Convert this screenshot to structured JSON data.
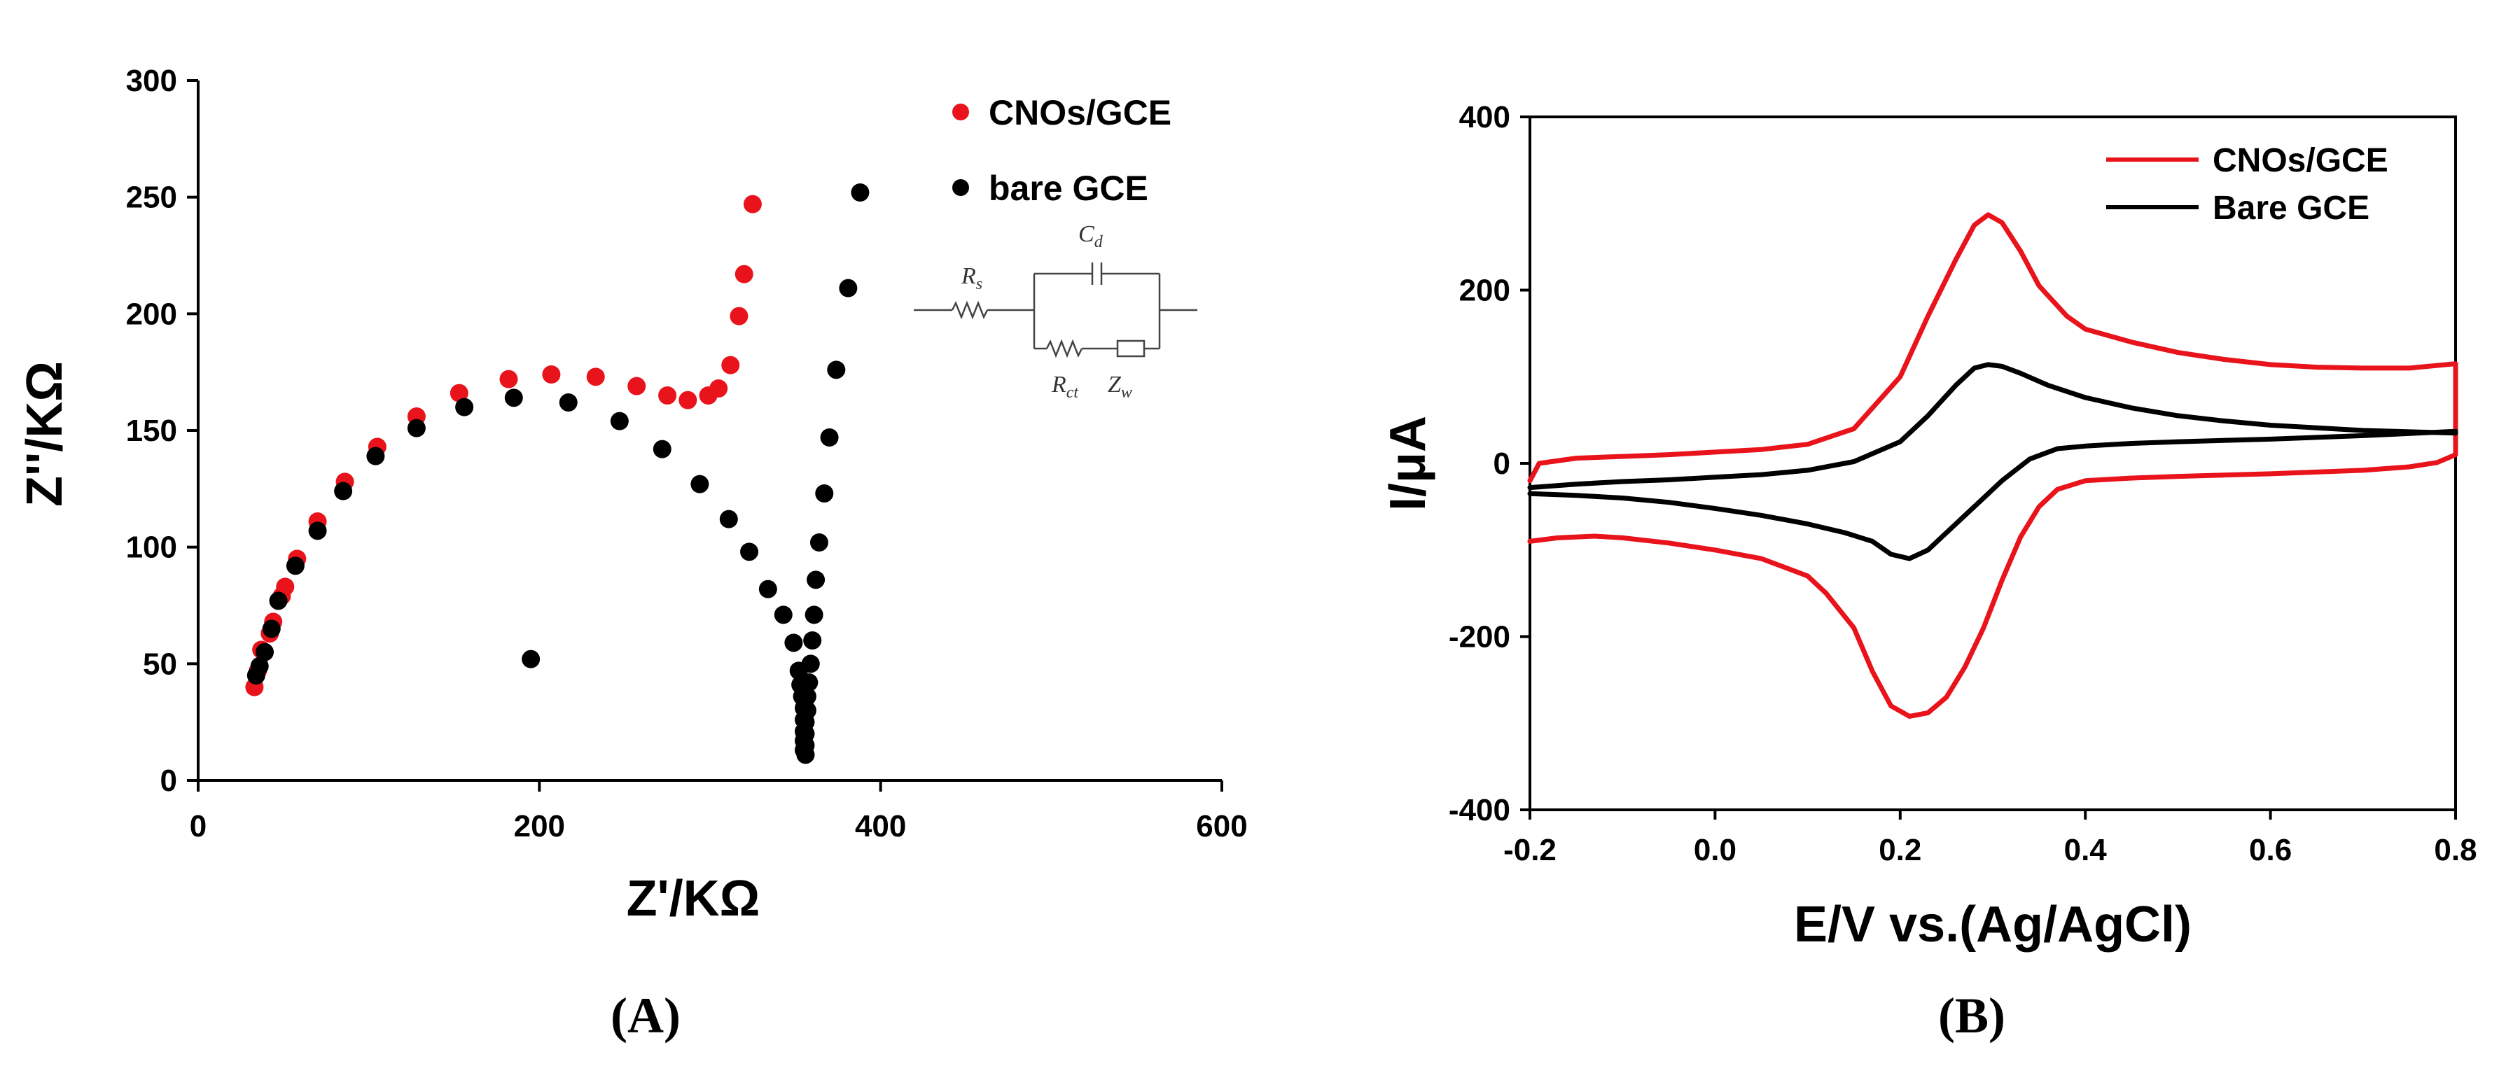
{
  "chart_data": [
    {
      "type": "scatter",
      "panel_label": "(A)",
      "xlabel": "Z'/KΩ",
      "ylabel": "Z''/KΩ",
      "xlim": [
        0,
        600
      ],
      "ylim": [
        0,
        300
      ],
      "xticks": [
        "0",
        "200",
        "400",
        "600"
      ],
      "yticks": [
        "0",
        "50",
        "100",
        "150",
        "200",
        "250",
        "300"
      ],
      "legend_position": "top-right",
      "inset_circuit": {
        "labels": [
          "R",
          "C",
          "R",
          "Z"
        ],
        "subscripts": [
          "s",
          "d",
          "ct",
          "w"
        ]
      },
      "series": [
        {
          "name": "CNOs/GCE",
          "color": "#e8131b",
          "points": [
            [
              33,
              40
            ],
            [
              35,
              47
            ],
            [
              37,
              56
            ],
            [
              42,
              63
            ],
            [
              44,
              68
            ],
            [
              49,
              79
            ],
            [
              51,
              83
            ],
            [
              58,
              95
            ],
            [
              70,
              111
            ],
            [
              86,
              128
            ],
            [
              105,
              143
            ],
            [
              128,
              156
            ],
            [
              153,
              166
            ],
            [
              182,
              172
            ],
            [
              207,
              174
            ],
            [
              233,
              173
            ],
            [
              257,
              169
            ],
            [
              275,
              165
            ],
            [
              287,
              163
            ],
            [
              299,
              165
            ],
            [
              305,
              168
            ],
            [
              312,
              178
            ],
            [
              317,
              199
            ],
            [
              320,
              217
            ],
            [
              325,
              247
            ]
          ]
        },
        {
          "name": "bare GCE",
          "color": "#000000",
          "points": [
            [
              34,
              45
            ],
            [
              36,
              49
            ],
            [
              39,
              55
            ],
            [
              43,
              65
            ],
            [
              47,
              77
            ],
            [
              57,
              92
            ],
            [
              70,
              107
            ],
            [
              85,
              124
            ],
            [
              104,
              139
            ],
            [
              128,
              151
            ],
            [
              156,
              160
            ],
            [
              185,
              164
            ],
            [
              217,
              162
            ],
            [
              247,
              154
            ],
            [
              272,
              142
            ],
            [
              294,
              127
            ],
            [
              311,
              112
            ],
            [
              323,
              98
            ],
            [
              334,
              82
            ],
            [
              343,
              71
            ],
            [
              349,
              59
            ],
            [
              352,
              47
            ],
            [
              353,
              41
            ],
            [
              354,
              36
            ],
            [
              355,
              31
            ],
            [
              355,
              26
            ],
            [
              355,
              21
            ],
            [
              355,
              17
            ],
            [
              355,
              13
            ],
            [
              356,
              11
            ],
            [
              356,
              15
            ],
            [
              356,
              20
            ],
            [
              356,
              25
            ],
            [
              357,
              30
            ],
            [
              357,
              36
            ],
            [
              358,
              42
            ],
            [
              359,
              50
            ],
            [
              360,
              60
            ],
            [
              361,
              71
            ],
            [
              362,
              86
            ],
            [
              364,
              102
            ],
            [
              367,
              123
            ],
            [
              370,
              147
            ],
            [
              374,
              176
            ],
            [
              381,
              211
            ],
            [
              388,
              252
            ],
            [
              195,
              52
            ]
          ]
        }
      ]
    },
    {
      "type": "line",
      "panel_label": "(B)",
      "xlabel": "E/V vs.(Ag/AgCl)",
      "ylabel": "I/μA",
      "xlim": [
        -0.2,
        0.8
      ],
      "ylim": [
        -400,
        400
      ],
      "xticks": [
        "-0.2",
        "0.0",
        "0.2",
        "0.4",
        "0.6",
        "0.8"
      ],
      "yticks": [
        "-400",
        "-200",
        "0",
        "200",
        "400"
      ],
      "legend_position": "top-right",
      "series": [
        {
          "name": "CNOs/GCE",
          "color": "#e8131b",
          "points": [
            [
              -0.2,
              -20
            ],
            [
              -0.19,
              0
            ],
            [
              -0.15,
              6
            ],
            [
              -0.1,
              8
            ],
            [
              -0.05,
              10
            ],
            [
              0,
              13
            ],
            [
              0.05,
              16
            ],
            [
              0.1,
              22
            ],
            [
              0.15,
              40
            ],
            [
              0.2,
              100
            ],
            [
              0.23,
              170
            ],
            [
              0.26,
              235
            ],
            [
              0.28,
              275
            ],
            [
              0.295,
              287
            ],
            [
              0.31,
              278
            ],
            [
              0.33,
              245
            ],
            [
              0.35,
              205
            ],
            [
              0.38,
              170
            ],
            [
              0.4,
              155
            ],
            [
              0.45,
              140
            ],
            [
              0.5,
              128
            ],
            [
              0.55,
              120
            ],
            [
              0.6,
              114
            ],
            [
              0.65,
              111
            ],
            [
              0.7,
              110
            ],
            [
              0.75,
              110
            ],
            [
              0.8,
              115
            ],
            [
              0.8,
              10
            ],
            [
              0.78,
              1
            ],
            [
              0.75,
              -4
            ],
            [
              0.7,
              -8
            ],
            [
              0.6,
              -12
            ],
            [
              0.5,
              -15
            ],
            [
              0.45,
              -17
            ],
            [
              0.4,
              -20
            ],
            [
              0.37,
              -30
            ],
            [
              0.35,
              -50
            ],
            [
              0.33,
              -85
            ],
            [
              0.31,
              -135
            ],
            [
              0.29,
              -190
            ],
            [
              0.27,
              -235
            ],
            [
              0.25,
              -270
            ],
            [
              0.23,
              -288
            ],
            [
              0.21,
              -292
            ],
            [
              0.19,
              -280
            ],
            [
              0.17,
              -240
            ],
            [
              0.15,
              -190
            ],
            [
              0.12,
              -150
            ],
            [
              0.1,
              -130
            ],
            [
              0.05,
              -110
            ],
            [
              0,
              -100
            ],
            [
              -0.05,
              -92
            ],
            [
              -0.1,
              -86
            ],
            [
              -0.13,
              -84
            ],
            [
              -0.17,
              -86
            ],
            [
              -0.2,
              -90
            ]
          ]
        },
        {
          "name": "Bare GCE",
          "color": "#000000",
          "points": [
            [
              -0.2,
              -28
            ],
            [
              -0.15,
              -24
            ],
            [
              -0.1,
              -21
            ],
            [
              -0.05,
              -19
            ],
            [
              0,
              -16
            ],
            [
              0.05,
              -13
            ],
            [
              0.1,
              -8
            ],
            [
              0.15,
              2
            ],
            [
              0.2,
              25
            ],
            [
              0.23,
              55
            ],
            [
              0.26,
              90
            ],
            [
              0.28,
              110
            ],
            [
              0.295,
              114
            ],
            [
              0.31,
              112
            ],
            [
              0.33,
              104
            ],
            [
              0.36,
              90
            ],
            [
              0.4,
              76
            ],
            [
              0.45,
              64
            ],
            [
              0.5,
              55
            ],
            [
              0.55,
              49
            ],
            [
              0.6,
              44
            ],
            [
              0.7,
              38
            ],
            [
              0.8,
              35
            ],
            [
              0.8,
              37
            ],
            [
              0.7,
              32
            ],
            [
              0.6,
              28
            ],
            [
              0.5,
              25
            ],
            [
              0.45,
              23
            ],
            [
              0.4,
              20
            ],
            [
              0.37,
              17
            ],
            [
              0.34,
              5
            ],
            [
              0.31,
              -20
            ],
            [
              0.28,
              -50
            ],
            [
              0.25,
              -80
            ],
            [
              0.23,
              -100
            ],
            [
              0.21,
              -110
            ],
            [
              0.19,
              -105
            ],
            [
              0.17,
              -90
            ],
            [
              0.14,
              -80
            ],
            [
              0.1,
              -70
            ],
            [
              0.05,
              -60
            ],
            [
              0,
              -52
            ],
            [
              -0.05,
              -45
            ],
            [
              -0.1,
              -40
            ],
            [
              -0.15,
              -37
            ],
            [
              -0.2,
              -35
            ]
          ]
        }
      ]
    }
  ]
}
